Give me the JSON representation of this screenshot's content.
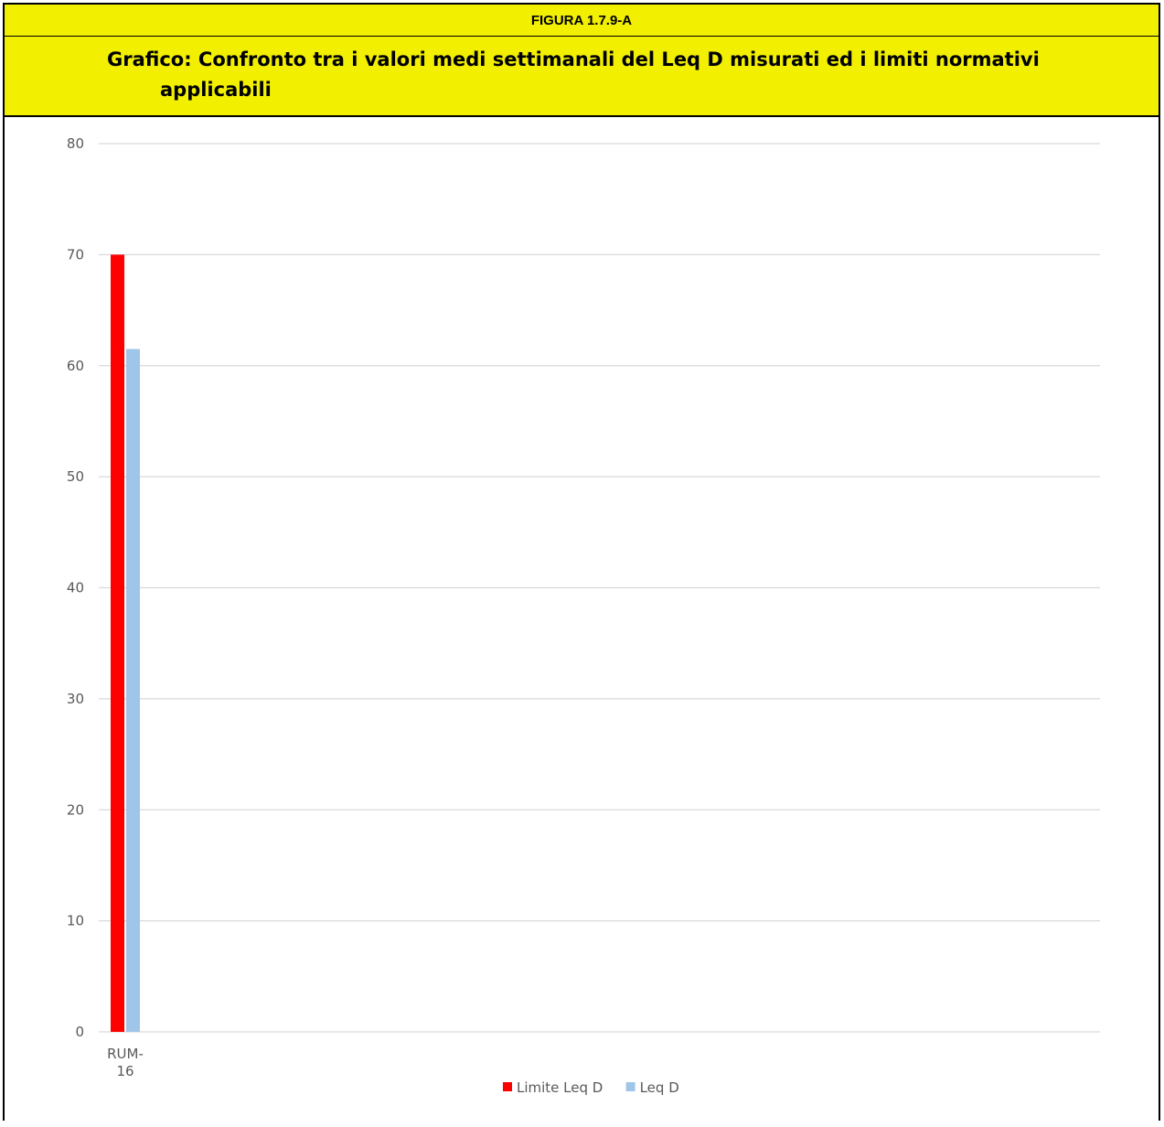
{
  "figure": {
    "label": "FIGURA 1.7.9-A",
    "title": "Grafico: Confronto tra i valori medi settimanali del Leq D misurati ed i limiti normativi applicabili"
  },
  "chart_data": {
    "type": "bar",
    "categories": [
      "RUM-16"
    ],
    "category_label_lines": [
      [
        "RUM-",
        "16"
      ]
    ],
    "series": [
      {
        "name": "Limite Leq D",
        "values": [
          70
        ],
        "color": "#ff0000"
      },
      {
        "name": "Leq D",
        "values": [
          61.5
        ],
        "color": "#9fc5e8"
      }
    ],
    "ylim": [
      0,
      80
    ],
    "yticks": [
      0,
      10,
      20,
      30,
      40,
      50,
      60,
      70,
      80
    ],
    "grid": true,
    "legend": "bottom-center",
    "colors": {
      "header_background": "#f2ef00",
      "gridline": "#d9d9d9",
      "tick_text": "#595959"
    }
  }
}
